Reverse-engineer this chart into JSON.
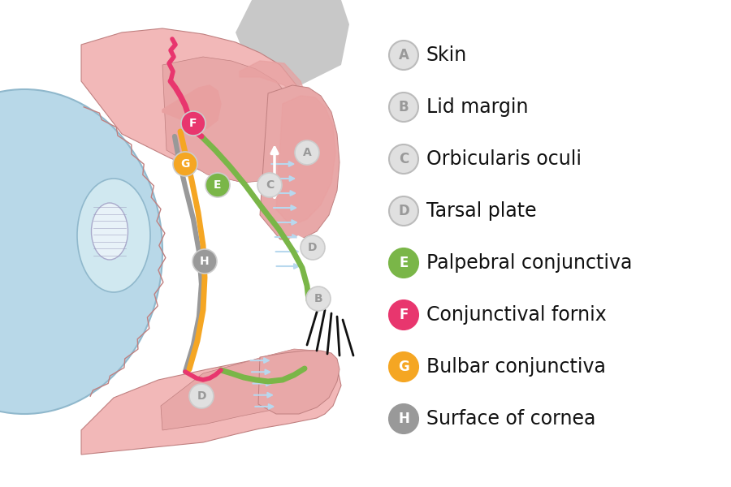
{
  "background_color": "#ffffff",
  "legend_items": [
    {
      "label": "A",
      "text": "Skin",
      "bg": "#e0e0e0",
      "text_color": "#999999",
      "border": "#bbbbbb",
      "filled": false
    },
    {
      "label": "B",
      "text": "Lid margin",
      "bg": "#e0e0e0",
      "text_color": "#999999",
      "border": "#bbbbbb",
      "filled": false
    },
    {
      "label": "C",
      "text": "Orbicularis oculi",
      "bg": "#e0e0e0",
      "text_color": "#999999",
      "border": "#bbbbbb",
      "filled": false
    },
    {
      "label": "D",
      "text": "Tarsal plate",
      "bg": "#e0e0e0",
      "text_color": "#999999",
      "border": "#bbbbbb",
      "filled": false
    },
    {
      "label": "E",
      "text": "Palpebral conjunctiva",
      "bg": "#7ab648",
      "text_color": "#ffffff",
      "border": "#7ab648",
      "filled": true
    },
    {
      "label": "F",
      "text": "Conjunctival fornix",
      "bg": "#e8366e",
      "text_color": "#ffffff",
      "border": "#e8366e",
      "filled": true
    },
    {
      "label": "G",
      "text": "Bulbar conjunctiva",
      "bg": "#f5a623",
      "text_color": "#ffffff",
      "border": "#f5a623",
      "filled": true
    },
    {
      "label": "H",
      "text": "Surface of cornea",
      "bg": "#999999",
      "text_color": "#ffffff",
      "border": "#999999",
      "filled": true
    }
  ],
  "colors": {
    "skin_light": "#f2b8b8",
    "skin_medium": "#e8a0a0",
    "skin_dark": "#cc7070",
    "gray_bone": "#c8c8c8",
    "sclera": "#b8d8e8",
    "sclera_edge": "#90b8cc",
    "tissue_pink": "#e8a8a8",
    "tissue_dark": "#d08888",
    "white": "#ffffff",
    "green": "#7ab648",
    "orange": "#f5a623",
    "crimson": "#e8366e",
    "gray_h": "#999999",
    "light_blue": "#b8d8ee",
    "black": "#111111",
    "outline": "#c08080"
  }
}
